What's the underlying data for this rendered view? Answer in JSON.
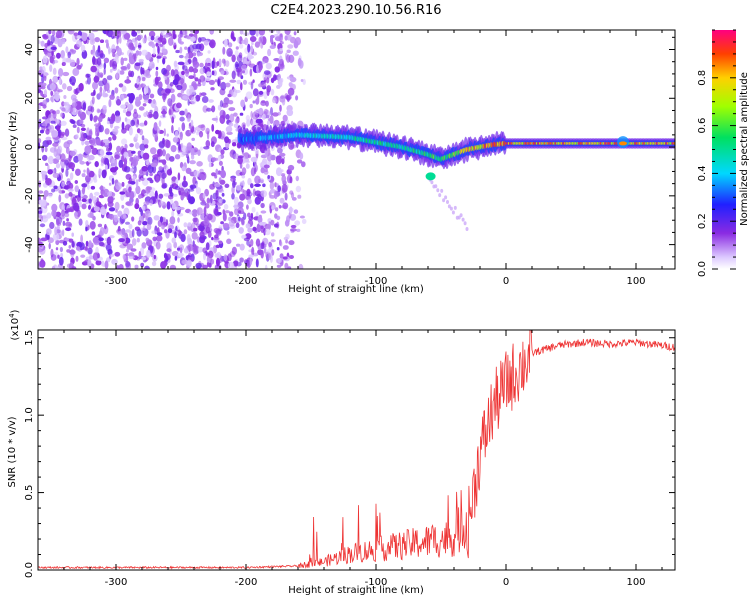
{
  "title": "C2E4.2023.290.10.56.R16",
  "chart_data": [
    {
      "type": "heatmap",
      "xlabel": "Height of straight line (km)",
      "ylabel": "Frequency (Hz)",
      "xlim": [
        -360,
        130
      ],
      "ylim": [
        -50,
        48
      ],
      "xticks": [
        -300,
        -200,
        -100,
        0,
        100
      ],
      "yticks": [
        -40,
        -20,
        0,
        20,
        40
      ],
      "colorbar": {
        "label": "Normalized spectral amplitude",
        "range": [
          0.0,
          1.0
        ],
        "ticks": [
          0.0,
          0.2,
          0.4,
          0.6,
          0.8
        ],
        "tick_labels": [
          "0.0",
          "0.2",
          "0.4",
          "0.6",
          "0.8"
        ],
        "colormap": "rainbow"
      },
      "ridge": {
        "x": [
          -205,
          -180,
          -160,
          -140,
          -120,
          -100,
          -80,
          -60,
          -50,
          -40,
          -30,
          -20,
          -10,
          0,
          20,
          60,
          90,
          130
        ],
        "frequency": [
          3,
          4,
          5,
          4.5,
          4,
          2,
          0,
          -3,
          -5,
          -3,
          -1,
          0,
          1,
          1.5,
          1.5,
          1.5,
          1.5,
          1.5
        ],
        "amplitude": [
          0.35,
          0.4,
          0.45,
          0.5,
          0.5,
          0.55,
          0.55,
          0.6,
          0.6,
          0.7,
          0.8,
          0.85,
          0.9,
          0.9,
          0.9,
          0.9,
          0.9,
          0.9
        ]
      },
      "noise_region": {
        "x": [
          -360,
          -160
        ],
        "amplitude": 0.15
      },
      "branch": {
        "x": [
          -60,
          -30
        ],
        "frequency": [
          -12,
          -32
        ]
      }
    },
    {
      "type": "line",
      "xlabel": "Height of straight line (km)",
      "ylabel": "SNR (10 * v/v)",
      "scale_label": "(x10",
      "scale_exponent": "4",
      "scale_close": ")",
      "xlim": [
        -360,
        130
      ],
      "ylim": [
        0.0,
        1.55
      ],
      "xticks": [
        -300,
        -200,
        -100,
        0,
        100
      ],
      "yticks": [
        0.0,
        0.5,
        1.0,
        1.5
      ],
      "ytick_labels": [
        "0.0",
        "0.5",
        "1.0",
        "1.5"
      ],
      "series": [
        {
          "name": "SNR",
          "color": "#ee3333",
          "x": [
            -360,
            -300,
            -250,
            -200,
            -160,
            -140,
            -120,
            -100,
            -80,
            -60,
            -40,
            -30,
            -25,
            -20,
            -15,
            -10,
            0,
            10,
            20,
            40,
            60,
            80,
            100,
            130
          ],
          "values": [
            0.01,
            0.01,
            0.01,
            0.01,
            0.02,
            0.04,
            0.08,
            0.1,
            0.12,
            0.14,
            0.16,
            0.25,
            0.5,
            0.75,
            0.9,
            1.05,
            1.2,
            1.3,
            1.4,
            1.45,
            1.47,
            1.46,
            1.47,
            1.44
          ]
        }
      ]
    }
  ]
}
